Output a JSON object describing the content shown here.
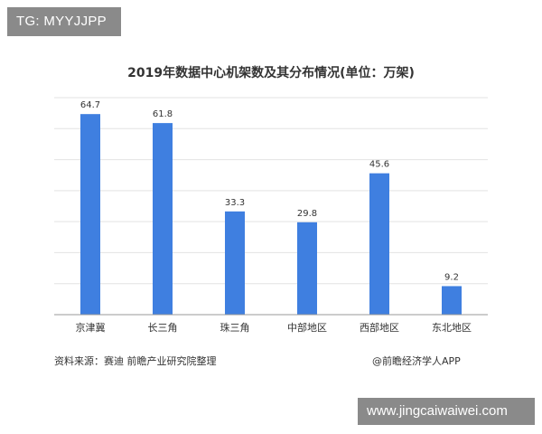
{
  "badges": {
    "top_left": "TG: MYYJJPP",
    "bottom_right": "www.jingcaiwaiwei.com"
  },
  "colors": {
    "bar": "#3f7fe0",
    "grid": "#e3e3e3",
    "axis": "#999999",
    "text": "#333333",
    "badge_bg": "#8a8a8a"
  },
  "footer": {
    "source": "资料来源：赛迪 前瞻产业研究院整理",
    "brand": "@前瞻经济学人APP"
  },
  "chart_data": {
    "type": "bar",
    "title": "2019年数据中心机架数及其分布情况(单位：万架)",
    "categories": [
      "京津冀",
      "长三角",
      "珠三角",
      "中部地区",
      "西部地区",
      "东北地区"
    ],
    "values": [
      64.7,
      61.8,
      33.3,
      29.8,
      45.6,
      9.2
    ],
    "value_labels": [
      "64.7",
      "61.8",
      "33.3",
      "29.8",
      "45.6",
      "9.2"
    ],
    "xlabel": "",
    "ylabel": "",
    "ylim": [
      0,
      70
    ],
    "grid": true,
    "legend": "none"
  }
}
